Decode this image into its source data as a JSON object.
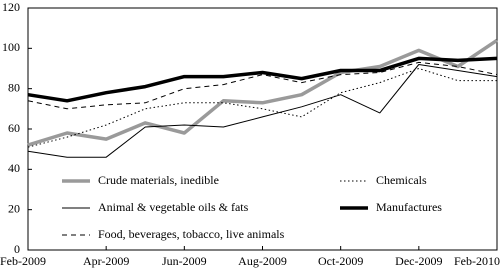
{
  "chart_data": {
    "type": "line",
    "categories": [
      "Feb-2009",
      null,
      "Apr-2009",
      null,
      "Jun-2009",
      null,
      "Aug-2009",
      null,
      "Oct-2009",
      null,
      "Dec-2009",
      null,
      "Feb-2010"
    ],
    "series": [
      {
        "name": "Crude materials, inedible",
        "color": "#9a9a9a",
        "weight": "thick",
        "dash": "solid",
        "values": [
          52,
          58,
          55,
          63,
          58,
          74,
          73,
          77,
          88,
          91,
          99,
          91,
          104
        ]
      },
      {
        "name": "Animal & vegetable oils & fats",
        "color": "#000000",
        "weight": "thin",
        "dash": "solid",
        "values": [
          49,
          46,
          46,
          61,
          62,
          61,
          66,
          71,
          77,
          68,
          92,
          89,
          86
        ]
      },
      {
        "name": "Food, beverages, tobacco, live animals",
        "color": "#000000",
        "weight": "thin",
        "dash": "dashed",
        "values": [
          74,
          70,
          72,
          73,
          80,
          82,
          87,
          83,
          87,
          88,
          93,
          91,
          87
        ]
      },
      {
        "name": "Chemicals",
        "color": "#000000",
        "weight": "thin",
        "dash": "dotted",
        "values": [
          51,
          56,
          62,
          70,
          73,
          73,
          70,
          66,
          78,
          83,
          90,
          84,
          84
        ]
      },
      {
        "name": "Manufactures",
        "color": "#000000",
        "weight": "thick",
        "dash": "solid",
        "values": [
          77,
          74,
          78,
          81,
          86,
          86,
          88,
          85,
          89,
          89,
          95,
          94,
          95
        ]
      }
    ],
    "ylim": [
      0,
      120
    ],
    "yticks": [
      0,
      20,
      40,
      60,
      80,
      100,
      120
    ],
    "grid": false
  }
}
